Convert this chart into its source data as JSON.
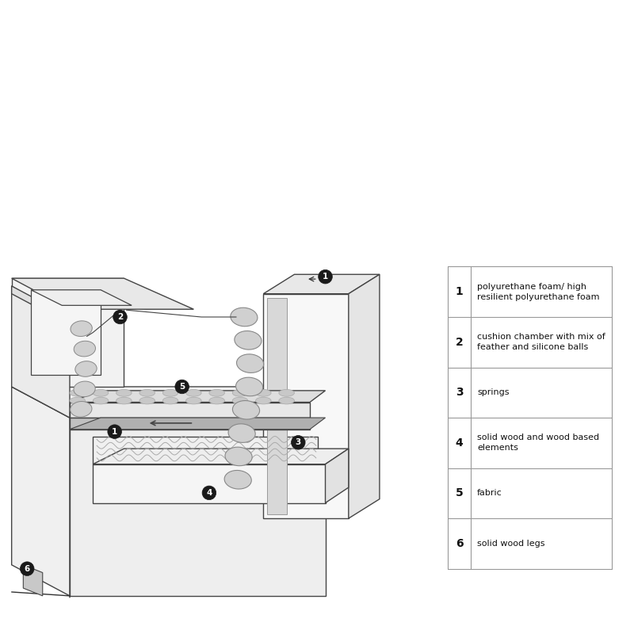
{
  "background_color": "#ffffff",
  "legend_items": [
    {
      "num": "1",
      "text": "polyurethane foam/ high\nresilient polyurethane foam"
    },
    {
      "num": "2",
      "text": "cushion chamber with mix of\nfeather and silicone balls"
    },
    {
      "num": "3",
      "text": "springs"
    },
    {
      "num": "4",
      "text": "solid wood and wood based\nelements"
    },
    {
      "num": "5",
      "text": "fabric"
    },
    {
      "num": "6",
      "text": "solid wood legs"
    }
  ],
  "table_line_color": "#999999",
  "num_fontsize": 10,
  "text_fontsize": 8,
  "line_color": "#444444",
  "line_width": 1.0,
  "fig_width": 8.0,
  "fig_height": 8.0,
  "dpi": 100
}
